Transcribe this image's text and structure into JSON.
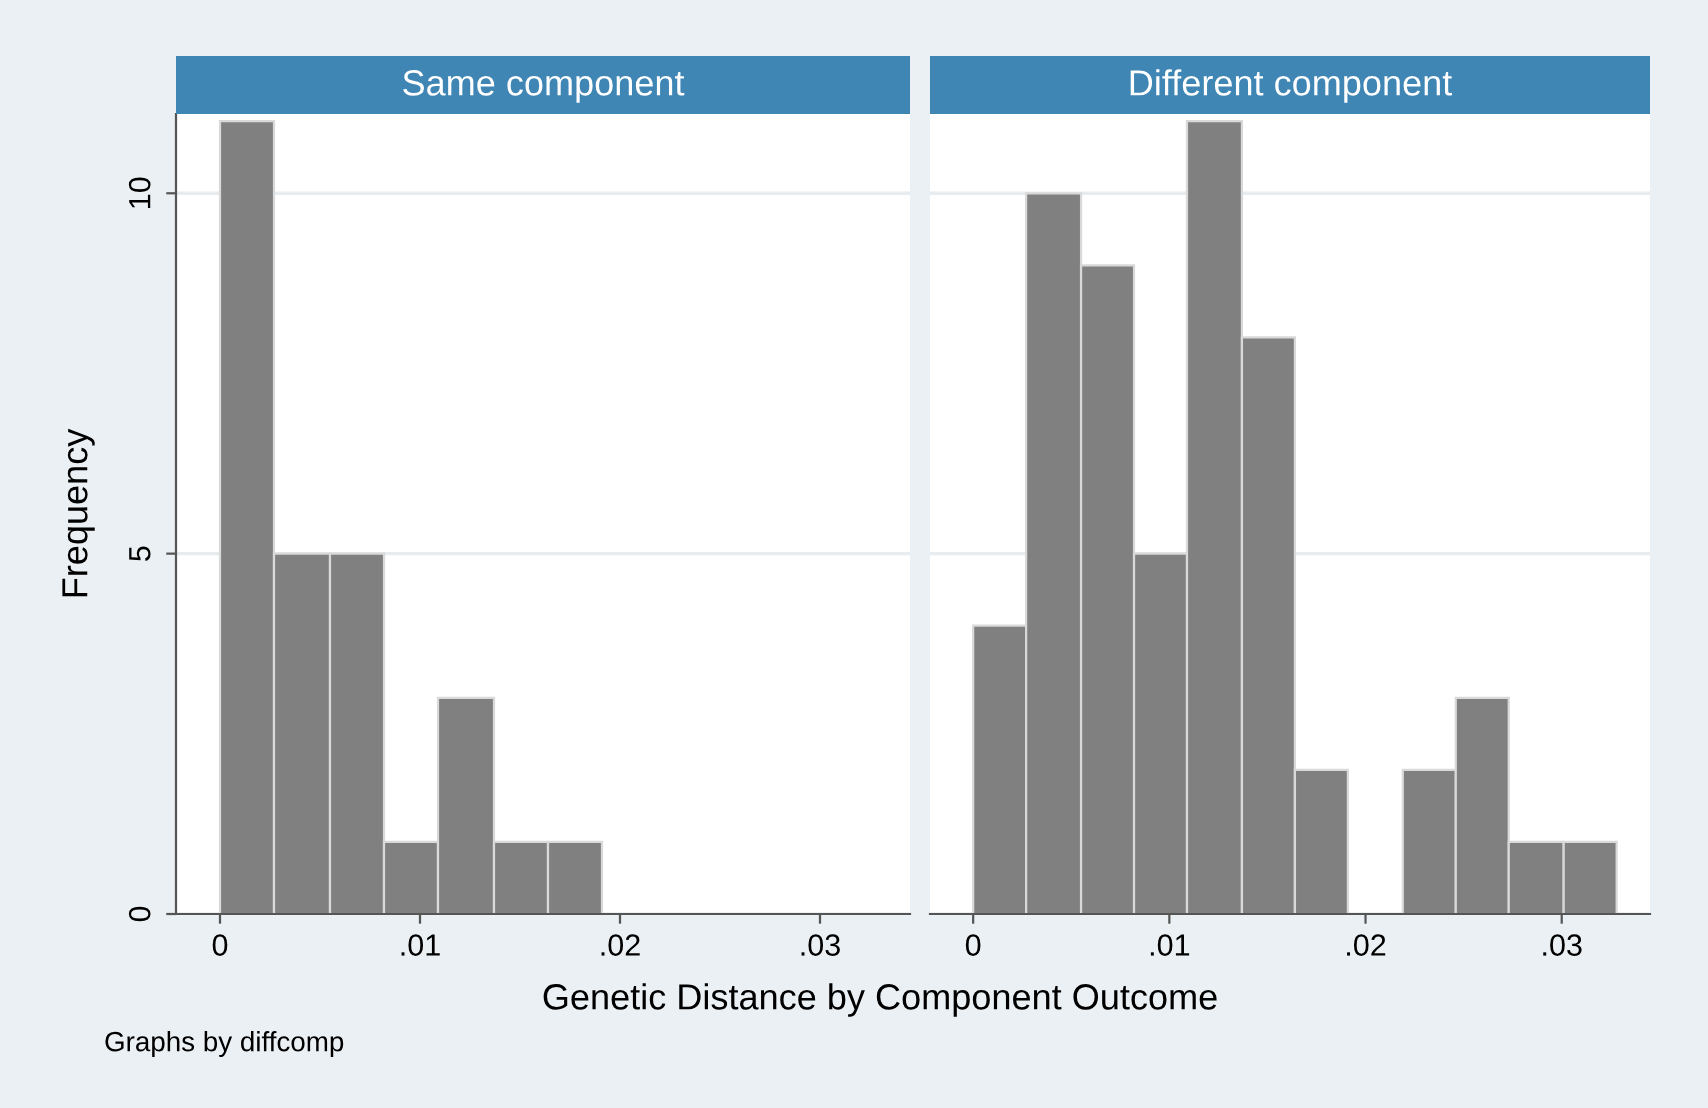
{
  "chart_data": [
    {
      "type": "histogram",
      "title": "Same component",
      "ylabel": "Frequency",
      "xlabel": "Genetic Distance by Component Outcome",
      "bins": [
        0,
        0.0027,
        0.0055,
        0.0082,
        0.0109,
        0.0137,
        0.0164,
        0.0191
      ],
      "values": [
        11,
        5,
        5,
        1,
        3,
        1,
        1
      ],
      "color": "#808080",
      "xlim": [
        -0.0022,
        0.0345
      ],
      "xticks": [
        {
          "value": 0,
          "label": "0"
        },
        {
          "value": 0.01,
          "label": ".01"
        },
        {
          "value": 0.02,
          "label": ".02"
        },
        {
          "value": 0.03,
          "label": ".03"
        }
      ],
      "ylim": [
        0,
        11.1
      ],
      "yticks": [
        0,
        5,
        10
      ],
      "grid": "y",
      "annotations": [
        "Graphs by diffcomp"
      ]
    },
    {
      "type": "histogram",
      "title": "Different component",
      "bins": [
        0,
        0.0027,
        0.0055,
        0.0082,
        0.0109,
        0.0137,
        0.0164,
        0.0191,
        0.0219,
        0.0246,
        0.0273,
        0.0301,
        0.0328
      ],
      "values": [
        4,
        10,
        9,
        5,
        11,
        8,
        2,
        0,
        2,
        3,
        1,
        1
      ],
      "color": "#808080",
      "xlim": [
        -0.0022,
        0.0345
      ],
      "xticks": [
        {
          "value": 0,
          "label": "0"
        },
        {
          "value": 0.01,
          "label": ".01"
        },
        {
          "value": 0.02,
          "label": ".02"
        },
        {
          "value": 0.03,
          "label": ".03"
        }
      ],
      "ylim": [
        0,
        11.1
      ],
      "yticks": [
        0,
        5,
        10
      ],
      "grid": "y",
      "tick_labels": "x"
    }
  ]
}
